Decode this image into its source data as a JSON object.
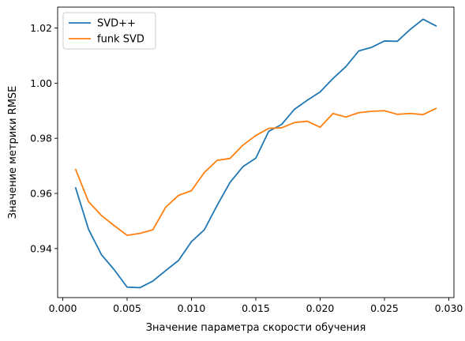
{
  "chart_data": {
    "type": "line",
    "xlabel": "Значение параметра скорости обучения",
    "ylabel": "Значение метрики RMSE",
    "xlim": [
      -0.0004,
      0.0304
    ],
    "ylim": [
      0.9222,
      1.0276
    ],
    "x_ticks": [
      0.0,
      0.005,
      0.01,
      0.015,
      0.02,
      0.025,
      0.03
    ],
    "x_tick_labels": [
      "0.000",
      "0.005",
      "0.010",
      "0.015",
      "0.020",
      "0.025",
      "0.030"
    ],
    "y_ticks": [
      0.94,
      0.96,
      0.98,
      1.0,
      1.02
    ],
    "y_tick_labels": [
      "0.94",
      "0.96",
      "0.98",
      "1.00",
      "1.02"
    ],
    "grid": false,
    "legend_position": "top-left",
    "x": [
      0.001,
      0.002,
      0.003,
      0.004,
      0.005,
      0.006,
      0.007,
      0.008,
      0.009,
      0.01,
      0.011,
      0.012,
      0.013,
      0.014,
      0.015,
      0.016,
      0.017,
      0.018,
      0.019,
      0.02,
      0.021,
      0.022,
      0.023,
      0.024,
      0.025,
      0.026,
      0.027,
      0.028,
      0.029
    ],
    "series": [
      {
        "name": "SVD++",
        "color": "#1f77b4",
        "values": [
          0.962,
          0.947,
          0.9378,
          0.9323,
          0.926,
          0.9258,
          0.9282,
          0.932,
          0.9357,
          0.9425,
          0.9468,
          0.9557,
          0.964,
          0.9697,
          0.9728,
          0.9825,
          0.985,
          0.9905,
          0.9938,
          0.9968,
          1.0017,
          1.006,
          1.0117,
          1.013,
          1.0153,
          1.0152,
          1.0195,
          1.0232,
          1.0208
        ]
      },
      {
        "name": "funk SVD",
        "color": "#ff7f0e",
        "values": [
          0.9687,
          0.957,
          0.952,
          0.9483,
          0.9448,
          0.9455,
          0.9468,
          0.955,
          0.9593,
          0.961,
          0.9676,
          0.972,
          0.9727,
          0.9775,
          0.981,
          0.9836,
          0.9838,
          0.9857,
          0.9862,
          0.984,
          0.989,
          0.9877,
          0.9893,
          0.9898,
          0.99,
          0.9887,
          0.989,
          0.9886,
          0.9908
        ]
      }
    ]
  }
}
